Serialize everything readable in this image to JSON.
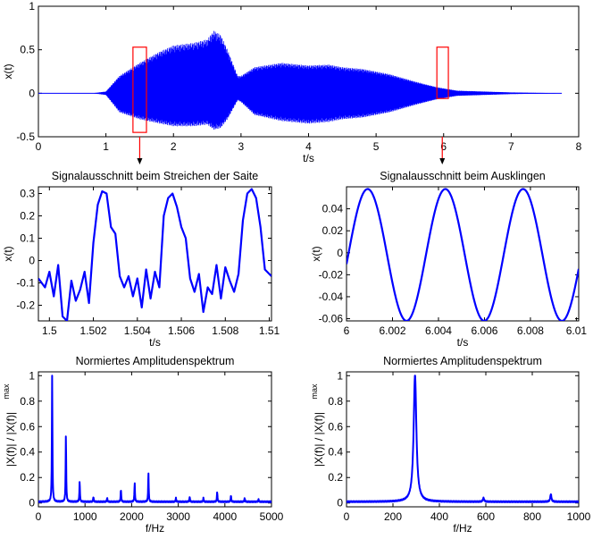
{
  "colors": {
    "signal": "#0000ff",
    "marker": "#ff0000",
    "axis": "#000000"
  },
  "chart_data": [
    {
      "id": "full",
      "type": "line",
      "title": "",
      "xlabel": "t/s",
      "ylabel": "x(t)",
      "xlim": [
        0,
        8
      ],
      "ylim": [
        -0.5,
        1
      ],
      "xticks": [
        0,
        1,
        2,
        3,
        4,
        5,
        6,
        7,
        8
      ],
      "yticks": [
        -0.5,
        0,
        0.5,
        1
      ],
      "xtick_labels": [
        "0",
        "1",
        "2",
        "3",
        "4",
        "5",
        "6",
        "7",
        "8"
      ],
      "ytick_labels": [
        "-0.5",
        "0",
        "0.5",
        "1"
      ],
      "envelope": {
        "t": [
          0.0,
          0.8,
          0.9,
          1.0,
          1.2,
          1.5,
          1.8,
          2.0,
          2.3,
          2.5,
          2.6,
          2.7,
          2.8,
          2.95,
          3.0,
          3.2,
          3.6,
          4.0,
          4.3,
          4.5,
          4.8,
          5.2,
          5.6,
          5.9,
          6.2,
          6.6,
          7.0,
          7.4,
          7.6,
          7.7,
          7.75
        ],
        "upper": [
          0.0,
          0.0,
          0.01,
          0.02,
          0.2,
          0.35,
          0.48,
          0.55,
          0.58,
          0.62,
          0.72,
          0.67,
          0.5,
          0.2,
          0.2,
          0.3,
          0.35,
          0.32,
          0.33,
          0.3,
          0.28,
          0.22,
          0.13,
          0.07,
          0.03,
          0.02,
          0.01,
          0.005,
          0.003,
          0.002,
          0.0
        ],
        "lower": [
          0.0,
          0.0,
          -0.01,
          -0.02,
          -0.22,
          -0.3,
          -0.35,
          -0.38,
          -0.38,
          -0.36,
          -0.42,
          -0.4,
          -0.3,
          -0.08,
          -0.1,
          -0.25,
          -0.32,
          -0.35,
          -0.33,
          -0.3,
          -0.28,
          -0.22,
          -0.13,
          -0.07,
          -0.03,
          -0.02,
          -0.01,
          -0.005,
          -0.003,
          -0.002,
          0.0
        ]
      },
      "markers": [
        {
          "t_from": 1.4,
          "t_to": 1.6,
          "y_from": -0.45,
          "y_to": 0.53
        },
        {
          "t_from": 5.9,
          "t_to": 6.07,
          "y_from": -0.06,
          "y_to": 0.53
        }
      ],
      "arrows": [
        {
          "t": 1.5
        },
        {
          "t": 5.98
        }
      ]
    },
    {
      "id": "strike",
      "type": "line",
      "title": "Signalausschnitt beim Streichen der Saite",
      "xlabel": "t/s",
      "ylabel": "x(t)",
      "xlim": [
        1.4995,
        1.5101
      ],
      "ylim": [
        -0.27,
        0.33
      ],
      "xticks": [
        1.5,
        1.502,
        1.504,
        1.506,
        1.508,
        1.51
      ],
      "xtick_labels": [
        "1.5",
        "1.502",
        "1.504",
        "1.506",
        "1.508",
        "1.51"
      ],
      "yticks": [
        -0.2,
        -0.1,
        0,
        0.1,
        0.2,
        0.3
      ],
      "ytick_labels": [
        "-0.2",
        "-0.1",
        "0",
        "0.1",
        "0.2",
        "0.3"
      ],
      "x": [
        1.4995,
        1.4998,
        1.5,
        1.5002,
        1.5004,
        1.5006,
        1.5008,
        1.501,
        1.5012,
        1.5014,
        1.5016,
        1.5018,
        1.502,
        1.5022,
        1.5024,
        1.5026,
        1.5028,
        1.503,
        1.5032,
        1.5034,
        1.5036,
        1.5038,
        1.504,
        1.5042,
        1.5044,
        1.5046,
        1.5048,
        1.505,
        1.5052,
        1.5054,
        1.5056,
        1.5058,
        1.506,
        1.5062,
        1.5064,
        1.5066,
        1.5068,
        1.507,
        1.5072,
        1.5074,
        1.5076,
        1.5078,
        1.508,
        1.5082,
        1.5084,
        1.5086,
        1.5088,
        1.509,
        1.5092,
        1.5094,
        1.5096,
        1.5098,
        1.51,
        1.5101
      ],
      "y": [
        -0.08,
        -0.12,
        -0.05,
        -0.16,
        -0.02,
        -0.25,
        -0.27,
        -0.09,
        -0.18,
        -0.13,
        -0.05,
        -0.19,
        0.08,
        0.25,
        0.31,
        0.3,
        0.15,
        0.12,
        -0.07,
        -0.12,
        -0.07,
        -0.16,
        -0.08,
        -0.21,
        -0.04,
        -0.17,
        -0.05,
        -0.12,
        0.2,
        0.28,
        0.3,
        0.24,
        0.15,
        0.1,
        -0.08,
        -0.14,
        -0.06,
        -0.23,
        -0.12,
        -0.15,
        -0.02,
        -0.17,
        -0.03,
        -0.09,
        -0.14,
        -0.06,
        0.18,
        0.3,
        0.32,
        0.28,
        0.15,
        -0.04,
        -0.06,
        -0.07
      ]
    },
    {
      "id": "decay",
      "type": "line",
      "title": "Signalausschnitt beim Ausklingen",
      "xlabel": "t/s",
      "ylabel": "x(t)",
      "xlim": [
        6.0,
        6.0101
      ],
      "ylim": [
        -0.062,
        0.06
      ],
      "xticks": [
        6.0,
        6.002,
        6.004,
        6.006,
        6.008,
        6.01
      ],
      "xtick_labels": [
        "6",
        "6.002",
        "6.004",
        "6.006",
        "6.008",
        "6.01"
      ],
      "yticks": [
        -0.06,
        -0.04,
        -0.02,
        0,
        0.02,
        0.04
      ],
      "ytick_labels": [
        "-0.06",
        "-0.04",
        "-0.02",
        "0",
        "0.02",
        "0.04"
      ],
      "sine": {
        "amplitude": 0.06,
        "offset": -0.002,
        "period": 0.00338,
        "peak_t": 6.00092
      }
    },
    {
      "id": "spec1",
      "type": "line",
      "title": "Normiertes Amplitudenspektrum",
      "xlabel": "f/Hz",
      "ylabel": "|X(f)| / |X(f)|",
      "ylabel_sub": "max",
      "xlim": [
        0,
        5000
      ],
      "ylim": [
        -0.03,
        1.03
      ],
      "xticks": [
        0,
        1000,
        2000,
        3000,
        4000,
        5000
      ],
      "xtick_labels": [
        "0",
        "1000",
        "2000",
        "3000",
        "4000",
        "5000"
      ],
      "yticks": [
        0,
        0.2,
        0.4,
        0.6,
        0.8,
        1
      ],
      "ytick_labels": [
        "0",
        "0.2",
        "0.4",
        "0.6",
        "0.8",
        "1"
      ],
      "baseline": 0.01,
      "peaks": [
        {
          "f": 295,
          "a": 1.0
        },
        {
          "f": 590,
          "a": 0.53
        },
        {
          "f": 885,
          "a": 0.16
        },
        {
          "f": 1180,
          "a": 0.04
        },
        {
          "f": 1475,
          "a": 0.03
        },
        {
          "f": 1770,
          "a": 0.1
        },
        {
          "f": 2065,
          "a": 0.15
        },
        {
          "f": 2360,
          "a": 0.23
        },
        {
          "f": 2950,
          "a": 0.03
        },
        {
          "f": 3245,
          "a": 0.04
        },
        {
          "f": 3540,
          "a": 0.03
        },
        {
          "f": 3835,
          "a": 0.08
        },
        {
          "f": 4130,
          "a": 0.05
        },
        {
          "f": 4425,
          "a": 0.03
        },
        {
          "f": 4720,
          "a": 0.02
        }
      ]
    },
    {
      "id": "spec2",
      "type": "line",
      "title": "Normiertes Amplitudenspektrum",
      "xlabel": "f/Hz",
      "ylabel": "|X(f)| / |X(f)|",
      "ylabel_sub": "max",
      "xlim": [
        0,
        1000
      ],
      "ylim": [
        -0.03,
        1.03
      ],
      "xticks": [
        0,
        200,
        400,
        600,
        800,
        1000
      ],
      "xtick_labels": [
        "0",
        "200",
        "400",
        "600",
        "800",
        "1000"
      ],
      "yticks": [
        0,
        0.2,
        0.4,
        0.6,
        0.8,
        1
      ],
      "ytick_labels": [
        "0",
        "0.2",
        "0.4",
        "0.6",
        "0.8",
        "1"
      ],
      "baseline": 0.01,
      "peaks": [
        {
          "f": 295,
          "a": 1.0,
          "w": 7
        },
        {
          "f": 590,
          "a": 0.03,
          "w": 3
        },
        {
          "f": 880,
          "a": 0.06,
          "w": 3
        }
      ]
    }
  ]
}
